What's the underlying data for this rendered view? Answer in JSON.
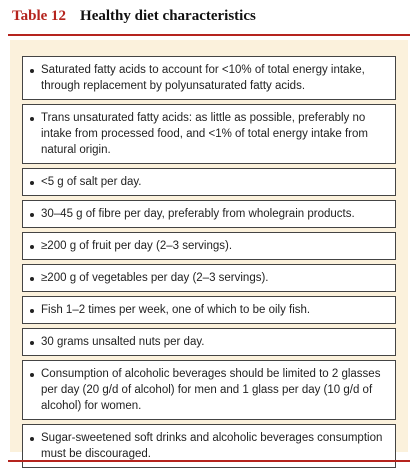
{
  "header": {
    "label": "Table 12",
    "title": "Healthy diet characteristics"
  },
  "items": [
    "Saturated fatty acids to account for <10% of total energy intake, through replacement by polyunsaturated fatty acids.",
    "Trans unsaturated fatty acids: as little as possible, preferably no intake from processed food, and <1% of total energy intake from natural origin.",
    "<5 g of salt per day.",
    "30–45 g of fibre per day, preferably from wholegrain products.",
    "≥200 g of fruit per day (2–3 servings).",
    "≥200 g of vegetables per day (2–3 servings).",
    "Fish 1–2 times per week, one of which to be oily fish.",
    "30 grams unsalted nuts per day.",
    "Consumption of alcoholic beverages should be limited to 2 glasses per day (20 g/d of alcohol) for men and 1 glass per day (10 g/d of alcohol) for women.",
    "Sugar-sweetened soft drinks and alcoholic beverages consumption must be discouraged."
  ]
}
